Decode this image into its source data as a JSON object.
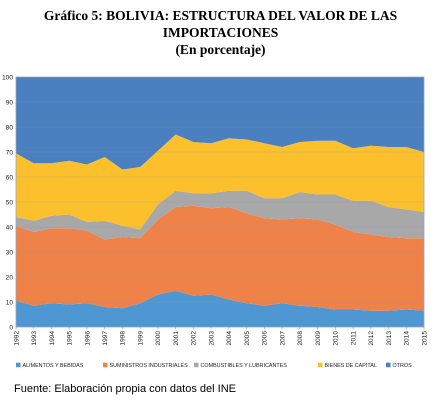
{
  "title_line1": "Gráfico 5: BOLIVIA: ESTRUCTURA DEL VALOR DE LAS",
  "title_line2": "IMPORTACIONES",
  "subtitle": "(En porcentaje)",
  "source": "Fuente: Elaboración propia con datos del INE",
  "chart_data": {
    "type": "area",
    "stacked": true,
    "x": [
      "1992",
      "1993",
      "1994",
      "1995",
      "1996",
      "1997",
      "1998",
      "1999",
      "2000",
      "2001",
      "2002",
      "2003",
      "2004",
      "2005",
      "2006",
      "2007",
      "2008",
      "2009",
      "2010",
      "2011",
      "2012",
      "2013",
      "2014",
      "2015"
    ],
    "ylim": [
      0,
      100
    ],
    "yticks": [
      0,
      10,
      20,
      30,
      40,
      50,
      60,
      70,
      80,
      90,
      100
    ],
    "grid": true,
    "legend_position": "bottom",
    "series": [
      {
        "name": "ALIMENTOS Y BEBIDAS",
        "color": "#4f97d3",
        "values": [
          10.5,
          8.5,
          9.5,
          9,
          9.5,
          8,
          7.5,
          9.5,
          13,
          14.5,
          12.5,
          13,
          11,
          9.5,
          8.5,
          9.5,
          8.5,
          8,
          7,
          7,
          6.5,
          6.5,
          7,
          6.5
        ]
      },
      {
        "name": "SUMINISTROS INDUSTRIALES",
        "color": "#ee8248",
        "values": [
          30,
          29.5,
          30,
          30.5,
          29,
          27,
          28.5,
          26,
          30,
          33.5,
          36,
          34.5,
          37,
          36,
          35,
          33.5,
          35,
          35,
          34,
          31,
          30.5,
          29.5,
          28.5,
          29
        ]
      },
      {
        "name": "COMBUSTIBLES Y LUBRICANTES",
        "color": "#a8a8a8",
        "values": [
          3.5,
          4.5,
          5,
          5.5,
          3.5,
          7.5,
          4.5,
          3.5,
          6,
          6.5,
          5,
          6,
          6.5,
          9,
          8,
          8.5,
          10.5,
          10,
          12,
          12.5,
          13.5,
          12,
          11.5,
          10.5
        ]
      },
      {
        "name": "BIENES DE CAPITAL",
        "color": "#fcc02d",
        "values": [
          25.5,
          23,
          21,
          21.5,
          23,
          25.5,
          22.5,
          25,
          21.5,
          22.5,
          20.5,
          20,
          21,
          20.5,
          22,
          20.5,
          20,
          21.5,
          21.5,
          21,
          22,
          24,
          25,
          24
        ]
      },
      {
        "name": "OTROS",
        "color": "#4a7fc0",
        "values": [
          30.5,
          34.5,
          34.5,
          33.5,
          35,
          32,
          37,
          36,
          29.5,
          23,
          26,
          26.5,
          24.5,
          25,
          26.5,
          28,
          26,
          25.5,
          25.5,
          28.5,
          27.5,
          28,
          28,
          30
        ]
      }
    ]
  }
}
